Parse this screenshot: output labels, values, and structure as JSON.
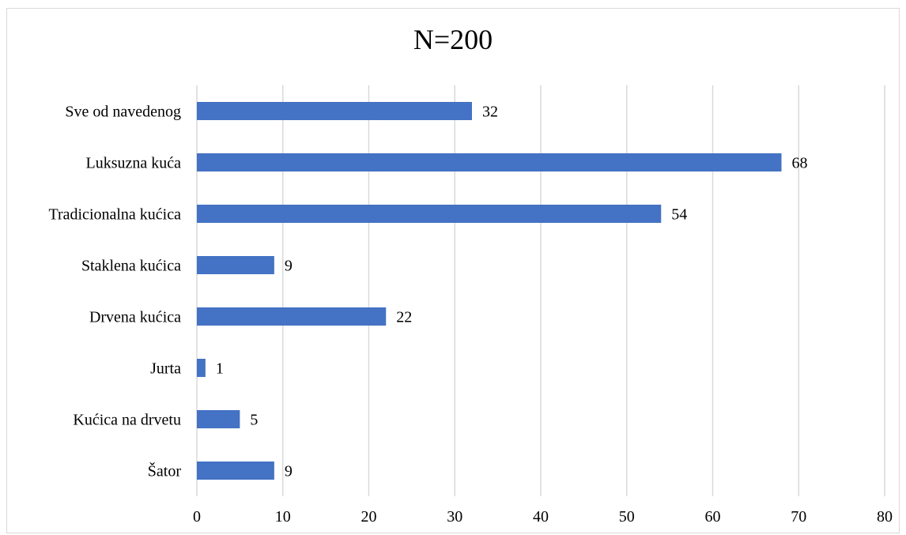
{
  "chart_data": {
    "type": "bar",
    "orientation": "horizontal",
    "title": "N=200",
    "categories": [
      "Sve od navedenog",
      "Luksuzna kuća",
      "Tradicionalna kućica",
      "Staklena kućica",
      "Drvena kućica",
      "Jurta",
      "Kućica na drvetu",
      "Šator"
    ],
    "values": [
      32,
      68,
      54,
      9,
      22,
      1,
      5,
      9
    ],
    "xlim": [
      0,
      80
    ],
    "x_ticks": [
      0,
      10,
      20,
      30,
      40,
      50,
      60,
      70,
      80
    ],
    "grid": "vertical",
    "legend": "none",
    "data_labels": true,
    "bar_color": "#4472c4",
    "grid_color": "#d9d9d9"
  }
}
